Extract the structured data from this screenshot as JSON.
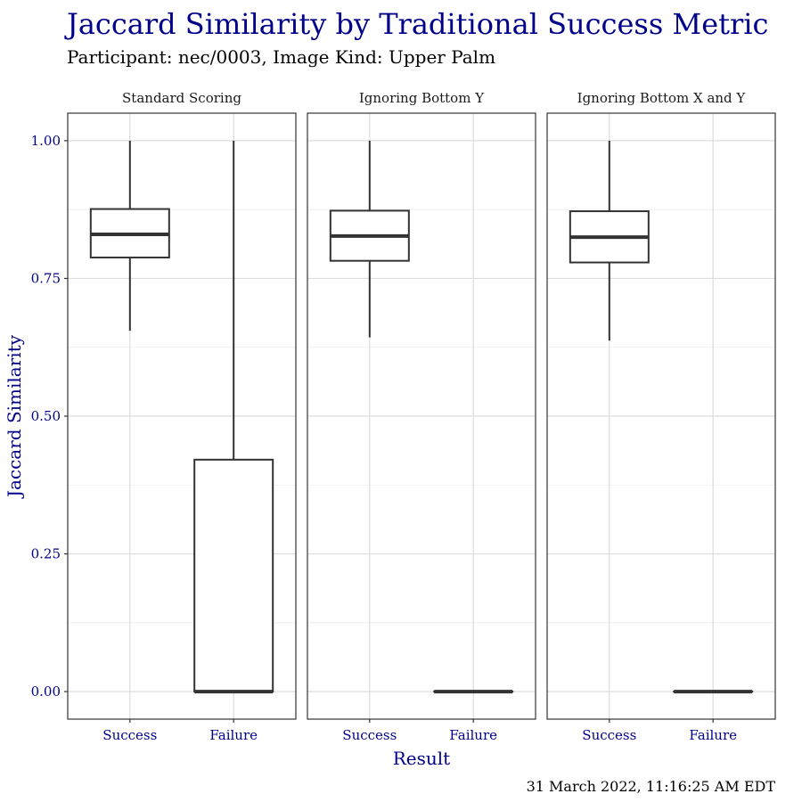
{
  "chart_data": {
    "type": "box",
    "title": "Jaccard Similarity by Traditional Success Metric",
    "subtitle": "Participant: nec/0003, Image Kind: Upper Palm",
    "xlabel": "Result",
    "ylabel": "Jaccard Similarity",
    "ylim": [
      -0.05,
      1.05
    ],
    "yticks": [
      0.0,
      0.25,
      0.5,
      0.75,
      1.0
    ],
    "ytick_labels": [
      "0.00",
      "0.25",
      "0.50",
      "0.75",
      "1.00"
    ],
    "categories": [
      "Success",
      "Failure"
    ],
    "facets": [
      {
        "label": "Standard Scoring",
        "boxes": [
          {
            "category": "Success",
            "min": 0.655,
            "q1": 0.788,
            "median": 0.83,
            "q3": 0.876,
            "max": 1.0
          },
          {
            "category": "Failure",
            "min": 0.0,
            "q1": 0.0,
            "median": 0.0,
            "q3": 0.421,
            "max": 1.0
          }
        ]
      },
      {
        "label": "Ignoring Bottom Y",
        "boxes": [
          {
            "category": "Success",
            "min": 0.643,
            "q1": 0.782,
            "median": 0.827,
            "q3": 0.873,
            "max": 1.0
          },
          {
            "category": "Failure",
            "min": 0.0,
            "q1": 0.0,
            "median": 0.0,
            "q3": 0.0,
            "max": 0.0
          }
        ]
      },
      {
        "label": "Ignoring Bottom X and Y",
        "boxes": [
          {
            "category": "Success",
            "min": 0.637,
            "q1": 0.779,
            "median": 0.825,
            "q3": 0.872,
            "max": 1.0
          },
          {
            "category": "Failure",
            "min": 0.0,
            "q1": 0.0,
            "median": 0.0,
            "q3": 0.0,
            "max": 0.0
          }
        ]
      }
    ],
    "caption": "31 March 2022, 11:16:25 AM EDT",
    "colors": {
      "title": "#00008B",
      "axis_text": "#00008B",
      "box_line": "#333333",
      "grid": "#dddddd",
      "panel_border": "#333333"
    }
  }
}
